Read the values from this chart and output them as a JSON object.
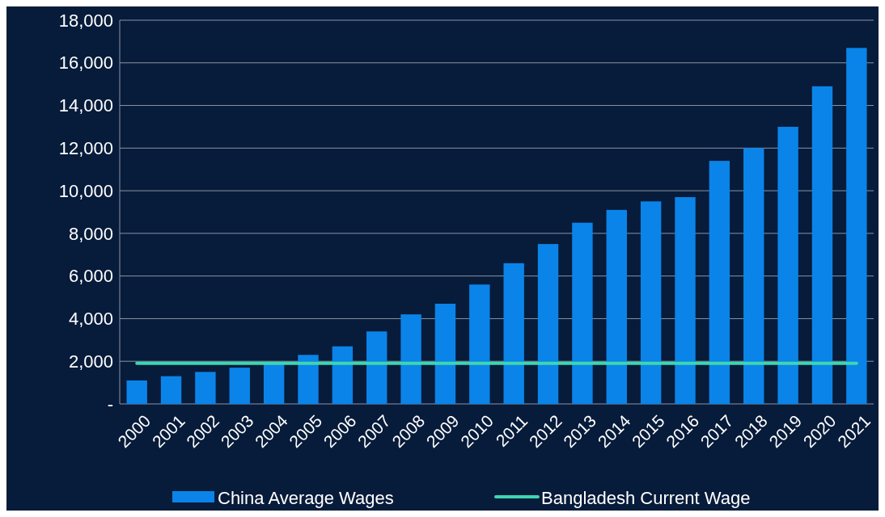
{
  "chart_data": {
    "type": "bar",
    "categories": [
      "2000",
      "2001",
      "2002",
      "2003",
      "2004",
      "2005",
      "2006",
      "2007",
      "2008",
      "2009",
      "2010",
      "2011",
      "2012",
      "2013",
      "2014",
      "2015",
      "2016",
      "2017",
      "2018",
      "2019",
      "2020",
      "2021"
    ],
    "series": [
      {
        "name": "China Average Wages",
        "color": "#0a84e8",
        "values": [
          1100,
          1300,
          1500,
          1700,
          1900,
          2300,
          2700,
          3400,
          4200,
          4700,
          5600,
          6600,
          7500,
          8500,
          9100,
          9500,
          9700,
          11400,
          12000,
          13000,
          14900,
          16700
        ]
      },
      {
        "name": "Bangladesh Current Wage",
        "type": "line",
        "color": "#3dd6b0",
        "values": [
          1900,
          1900,
          1900,
          1900,
          1900,
          1900,
          1900,
          1900,
          1900,
          1900,
          1900,
          1900,
          1900,
          1900,
          1900,
          1900,
          1900,
          1900,
          1900,
          1900,
          1900,
          1900
        ]
      }
    ],
    "ylim": [
      0,
      18000
    ],
    "yticks": [
      {
        "value": 0,
        "label": "-"
      },
      {
        "value": 2000,
        "label": "2,000"
      },
      {
        "value": 4000,
        "label": "4,000"
      },
      {
        "value": 6000,
        "label": "6,000"
      },
      {
        "value": 8000,
        "label": "8,000"
      },
      {
        "value": 10000,
        "label": "10,000"
      },
      {
        "value": 12000,
        "label": "12,000"
      },
      {
        "value": 14000,
        "label": "14,000"
      },
      {
        "value": 16000,
        "label": "16,000"
      },
      {
        "value": 18000,
        "label": "18,000"
      }
    ],
    "grid": "y",
    "legend": "bottom",
    "line_style": "solid"
  }
}
